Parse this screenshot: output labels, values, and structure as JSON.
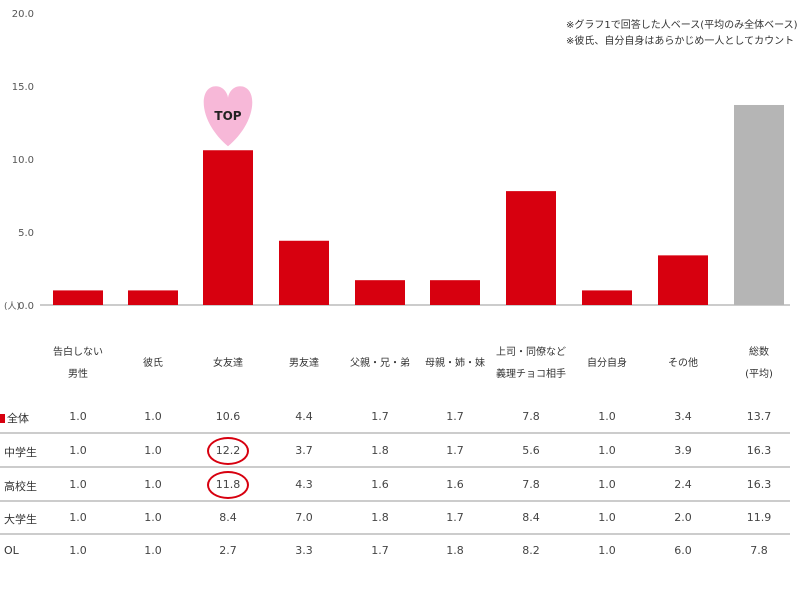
{
  "chart_data": {
    "type": "bar",
    "categories": [
      "告白しない男性",
      "彼氏",
      "女友達",
      "男友達",
      "父親・兄・弟",
      "母親・姉・妹",
      "上司・同僚など義理チョコ相手",
      "自分自身",
      "その他",
      "総数(平均)"
    ],
    "category_lines": [
      [
        "告白しない",
        "男性"
      ],
      [
        "彼氏"
      ],
      [
        "女友達"
      ],
      [
        "男友達"
      ],
      [
        "父親・兄・弟"
      ],
      [
        "母親・姉・妹"
      ],
      [
        "上司・同僚など",
        "義理チョコ相手"
      ],
      [
        "自分自身"
      ],
      [
        "その他"
      ],
      [
        "総数",
        "(平均)"
      ]
    ],
    "values": [
      1.0,
      1.0,
      10.6,
      4.4,
      1.7,
      1.7,
      7.8,
      1.0,
      3.4,
      13.7
    ],
    "series_name": "全体",
    "ylim": [
      0,
      20
    ],
    "yticks": [
      "0.0",
      "5.0",
      "10.0",
      "15.0",
      "20.0"
    ],
    "yticks_values": [
      0,
      5,
      10,
      15,
      20
    ],
    "yunit": "(人)",
    "annotation": "TOP",
    "annotation_category": "女友達",
    "colors": {
      "bar": "#d7000f",
      "total_bar": "#b5b5b5",
      "heart": "#f7b8d8",
      "circle": "#d7000f"
    },
    "notes": [
      "※グラフ1で回答した人ベース(平均のみ全体ベース)",
      "※彼氏、自分自身はあらかじめ一人としてカウント"
    ],
    "table": {
      "rows": [
        {
          "label": "全体",
          "values": [
            "1.0",
            "1.0",
            "10.6",
            "4.4",
            "1.7",
            "1.7",
            "7.8",
            "1.0",
            "3.4",
            "13.7"
          ]
        },
        {
          "label": "中学生",
          "values": [
            "1.0",
            "1.0",
            "12.2",
            "3.7",
            "1.8",
            "1.7",
            "5.6",
            "1.0",
            "3.9",
            "16.3"
          ]
        },
        {
          "label": "高校生",
          "values": [
            "1.0",
            "1.0",
            "11.8",
            "4.3",
            "1.6",
            "1.6",
            "7.8",
            "1.0",
            "2.4",
            "16.3"
          ]
        },
        {
          "label": "大学生",
          "values": [
            "1.0",
            "1.0",
            "8.4",
            "7.0",
            "1.8",
            "1.7",
            "8.4",
            "1.0",
            "2.0",
            "11.9"
          ]
        },
        {
          "label": "OL",
          "values": [
            "1.0",
            "1.0",
            "2.7",
            "3.3",
            "1.7",
            "1.8",
            "8.2",
            "1.0",
            "6.0",
            "7.8"
          ]
        }
      ],
      "highlighted": [
        {
          "row": "中学生",
          "category": "女友達"
        },
        {
          "row": "高校生",
          "category": "女友達"
        }
      ]
    }
  }
}
